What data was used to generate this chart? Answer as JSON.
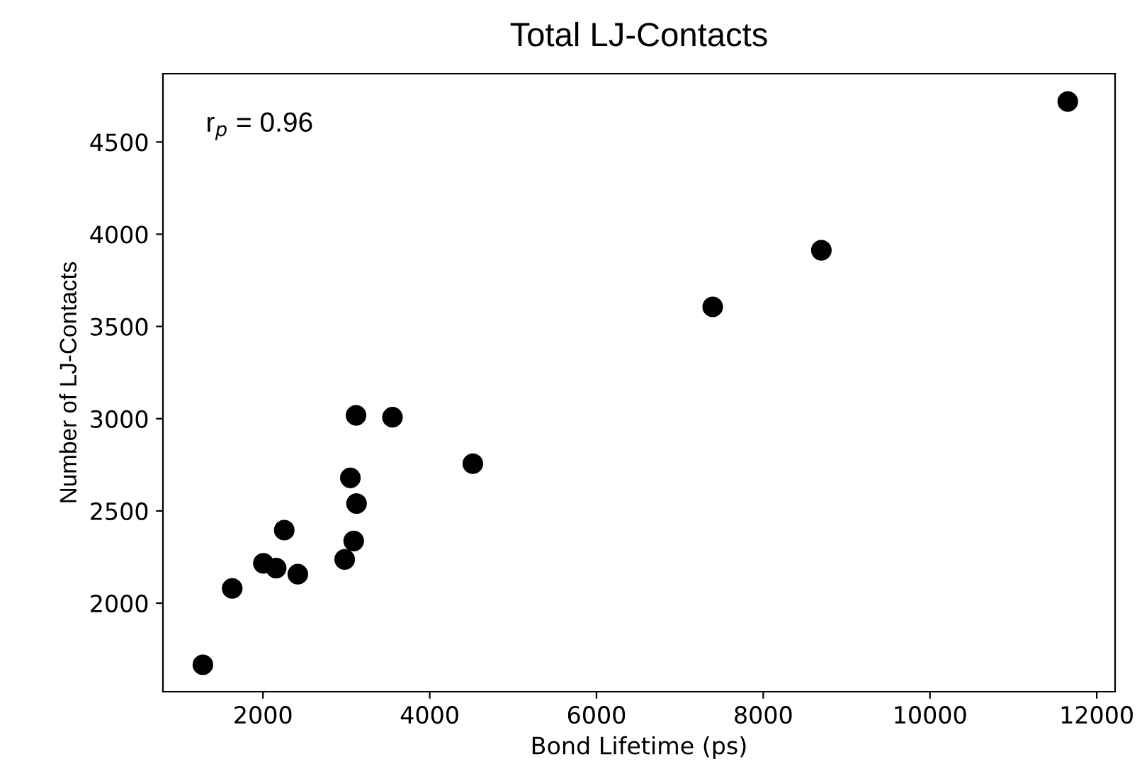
{
  "chart_data": {
    "type": "scatter",
    "title": "Total LJ-Contacts",
    "xlabel": "Bond Lifetime (ps)",
    "ylabel": "Number of LJ-Contacts",
    "annotations": [
      "r$_{p}$ = 0.96"
    ],
    "x": [
      1279,
      1631,
      2005,
      2158,
      2255,
      2418,
      2980,
      3088,
      3122,
      3048,
      3116,
      3553,
      4517,
      7394,
      8697,
      11653
    ],
    "values": [
      1666,
      2080,
      2216,
      2190,
      2396,
      2157,
      2237,
      2337,
      2540,
      2679,
      3018,
      3008,
      2756,
      3606,
      3913,
      4719
    ],
    "color": "#000000",
    "marker": "circle",
    "xlim": [
      800,
      12220
    ],
    "ylim": [
      1520,
      4870
    ],
    "xticks": [
      2000,
      4000,
      6000,
      8000,
      10000,
      12000
    ],
    "yticks": [
      2000,
      2500,
      3000,
      3500,
      4000,
      4500
    ],
    "grid": false,
    "legend": false
  }
}
